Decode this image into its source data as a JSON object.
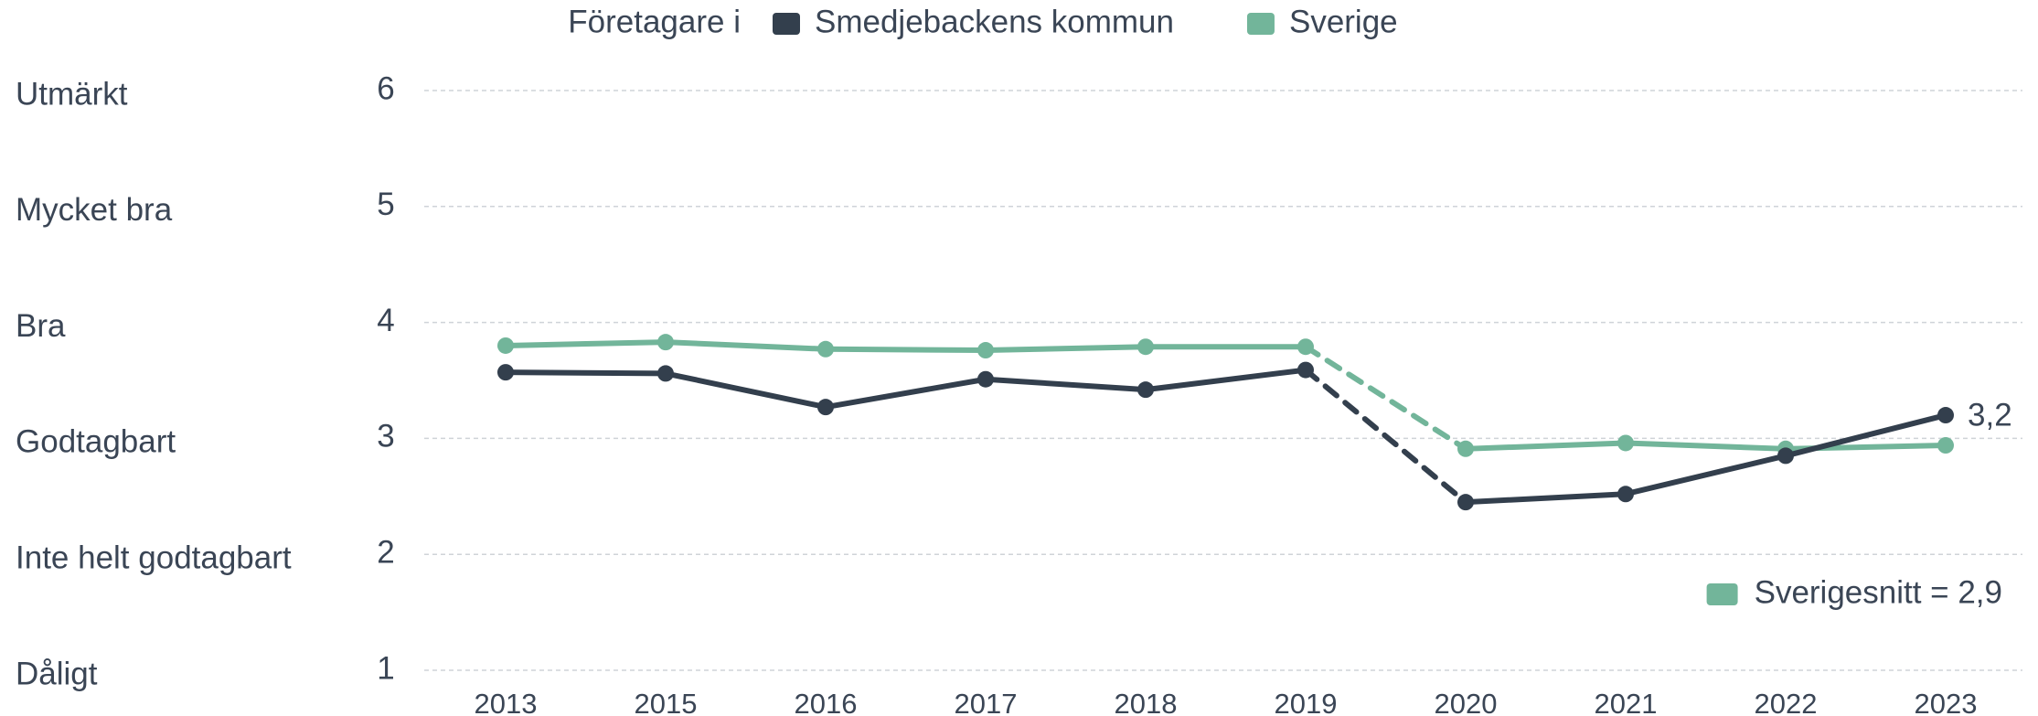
{
  "chart_data": {
    "type": "line",
    "legend_title": "Företagare i",
    "categories": [
      "2013",
      "2015",
      "2016",
      "2017",
      "2018",
      "2019",
      "2020",
      "2021",
      "2022",
      "2023"
    ],
    "series": [
      {
        "name": "Smedjebackens kommun",
        "color": "#333f4d",
        "values": [
          3.57,
          3.56,
          3.27,
          3.51,
          3.42,
          3.59,
          2.45,
          2.52,
          2.85,
          3.2
        ],
        "value_labels": [
          null,
          null,
          null,
          null,
          null,
          null,
          null,
          null,
          null,
          "3,2"
        ]
      },
      {
        "name": "Sverige",
        "color": "#72b59a",
        "values": [
          3.8,
          3.83,
          3.77,
          3.76,
          3.79,
          3.79,
          2.91,
          2.96,
          2.91,
          2.94
        ]
      }
    ],
    "dashed_segment": [
      5,
      6
    ],
    "ylim": [
      1,
      6
    ],
    "yticks": [
      1,
      2,
      3,
      4,
      5,
      6
    ],
    "ytick_descriptions": [
      "Dåligt",
      "Inte helt godtagbart",
      "Godtagbart",
      "Bra",
      "Mycket bra",
      "Utmärkt"
    ],
    "grid": true,
    "annotation": {
      "text": "Sverigesnitt = 2,9",
      "color": "#72b59a"
    }
  }
}
